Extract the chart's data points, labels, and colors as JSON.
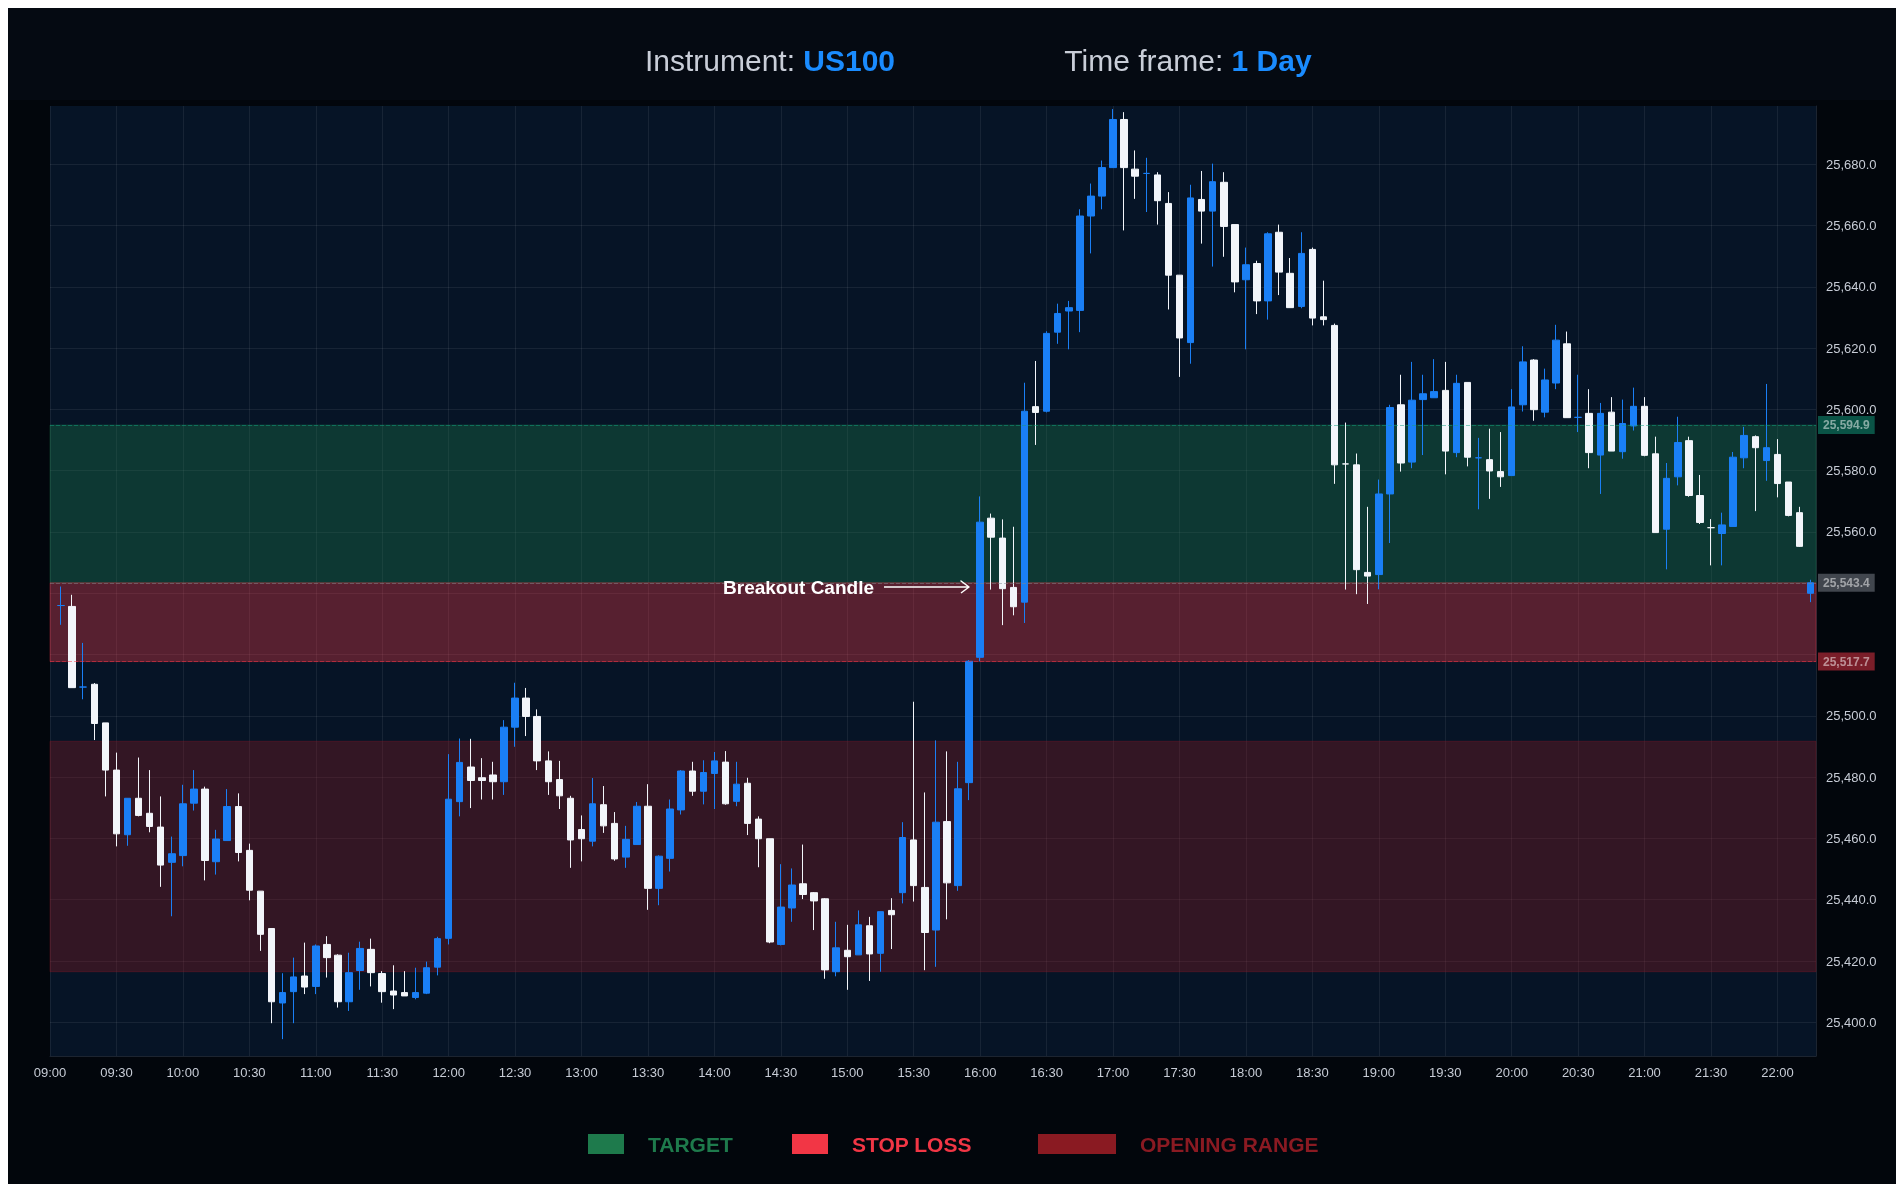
{
  "chart_data": {
    "type": "candlestick",
    "title": "Instrument: US100",
    "subtitle": "Time frame: 1 Day",
    "colors": [
      "#1a7ff5",
      "#f2f5fa",
      "#1a7ff5",
      "#f2f5fa",
      "#f2f5fa",
      "#f2f5fa",
      "#1a7ff5",
      "#f2f5fa",
      "#f2f5fa",
      "#f2f5fa",
      "#1a7ff5",
      "#1a7ff5",
      "#1a7ff5",
      "#f2f5fa",
      "#1a7ff5",
      "#1a7ff5",
      "#f2f5fa",
      "#f2f5fa",
      "#f2f5fa",
      "#f2f5fa",
      "#1a7ff5",
      "#1a7ff5",
      "#f2f5fa",
      "#1a7ff5",
      "#f2f5fa",
      "#f2f5fa",
      "#1a7ff5",
      "#1a7ff5",
      "#f2f5fa",
      "#f2f5fa",
      "#f2f5fa",
      "#f2f5fa",
      "#1a7ff5",
      "#1a7ff5",
      "#1a7ff5",
      "#1a7ff5",
      "#1a7ff5",
      "#f2f5fa",
      "#f2f5fa",
      "#f2f5fa",
      "#1a7ff5",
      "#1a7ff5",
      "#f2f5fa",
      "#f2f5fa",
      "#f2f5fa",
      "#f2f5fa",
      "#f2f5fa",
      "#f2f5fa",
      "#1a7ff5",
      "#f2f5fa",
      "#f2f5fa",
      "#1a7ff5",
      "#1a7ff5",
      "#f2f5fa",
      "#1a7ff5",
      "#1a7ff5",
      "#1a7ff5",
      "#f2f5fa",
      "#1a7ff5",
      "#1a7ff5",
      "#f2f5fa",
      "#1a7ff5",
      "#f2f5fa",
      "#f2f5fa",
      "#f2f5fa",
      "#1a7ff5",
      "#1a7ff5",
      "#f2f5fa",
      "#f2f5fa",
      "#f2f5fa",
      "#1a7ff5",
      "#f2f5fa",
      "#1a7ff5",
      "#f2f5fa",
      "#1a7ff5",
      "#f2f5fa",
      "#1a7ff5",
      "#f2f5fa",
      "#f2f5fa",
      "#1a7ff5",
      "#f2f5fa",
      "#1a7ff5",
      "#1a7ff5",
      "#1a7ff5",
      "#f2f5fa",
      "#f2f5fa",
      "#f2f5fa",
      "#1a7ff5",
      "#f2f5fa",
      "#1a7ff5",
      "#1a7ff5",
      "#1a7ff5",
      "#1a7ff5",
      "#1a7ff5",
      "#1a7ff5",
      "#1a7ff5",
      "#f2f5fa",
      "#f2f5fa",
      "#1a7ff5",
      "#f2f5fa",
      "#f2f5fa",
      "#f2f5fa",
      "#1a7ff5",
      "#f2f5fa",
      "#1a7ff5",
      "#f2f5fa",
      "#f2f5fa",
      "#1a7ff5",
      "#f2f5fa",
      "#1a7ff5",
      "#f2f5fa",
      "#f2f5fa",
      "#1a7ff5",
      "#f2f5fa",
      "#f2f5fa",
      "#f2f5fa",
      "#f2f5fa",
      "#f2f5fa",
      "#f2f5fa",
      "#1a7ff5",
      "#1a7ff5",
      "#f2f5fa",
      "#1a7ff5",
      "#1a7ff5",
      "#1a7ff5",
      "#f2f5fa",
      "#1a7ff5",
      "#f2f5fa",
      "#1a7ff5",
      "#f2f5fa",
      "#f2f5fa",
      "#1a7ff5",
      "#1a7ff5",
      "#f2f5fa",
      "#1a7ff5",
      "#1a7ff5",
      "#f2f5fa",
      "#1a7ff5",
      "#f2f5fa",
      "#1a7ff5",
      "#f2f5fa",
      "#1a7ff5",
      "#1a7ff5",
      "#f2f5fa",
      "#f2f5fa",
      "#1a7ff5",
      "#1a7ff5",
      "#f2f5fa",
      "#f2f5fa",
      "#f2f5fa",
      "#1a7ff5",
      "#1a7ff5",
      "#1a7ff5",
      "#f2f5fa",
      "#1a7ff5",
      "#f2f5fa",
      "#f2f5fa",
      "#f2f5fa",
      "#1a7ff5"
    ],
    "x": [
      9.0833,
      9.1667,
      9.25,
      9.3333,
      9.4167,
      9.5,
      9.5833,
      9.6667,
      9.75,
      9.8333,
      9.9167,
      10,
      10.0833,
      10.1667,
      10.25,
      10.3333,
      10.4167,
      10.5,
      10.5833,
      10.6667,
      10.75,
      10.8333,
      10.9167,
      11,
      11.0833,
      11.1667,
      11.25,
      11.3333,
      11.4167,
      11.5,
      11.5833,
      11.6667,
      11.75,
      11.8333,
      11.9167,
      12,
      12.0833,
      12.1667,
      12.25,
      12.3333,
      12.4167,
      12.5,
      12.5833,
      12.6667,
      12.75,
      12.8333,
      12.9167,
      13,
      13.0833,
      13.1667,
      13.25,
      13.3333,
      13.4167,
      13.5,
      13.5833,
      13.6667,
      13.75,
      13.8333,
      13.9167,
      14,
      14.0833,
      14.1667,
      14.25,
      14.3333,
      14.4167,
      14.5,
      14.5833,
      14.6667,
      14.75,
      14.8333,
      14.9167,
      15,
      15.0833,
      15.1667,
      15.25,
      15.3333,
      15.4167,
      15.5,
      15.5833,
      15.6667,
      15.75,
      15.8333,
      15.9167,
      16,
      16.0833,
      16.1667,
      16.25,
      16.3333,
      16.4167,
      16.5,
      16.5833,
      16.6667,
      16.75,
      16.8333,
      16.9167,
      17,
      17.0833,
      17.1667,
      17.25,
      17.3333,
      17.4167,
      17.5,
      17.5833,
      17.6667,
      17.75,
      17.8333,
      17.9167,
      18,
      18.0833,
      18.1667,
      18.25,
      18.3333,
      18.4167,
      18.5,
      18.5833,
      18.6667,
      18.75,
      18.8333,
      18.9167,
      19,
      19.0833,
      19.1667,
      19.25,
      19.3333,
      19.4167,
      19.5,
      19.5833,
      19.6667,
      19.75,
      19.8333,
      19.9167,
      20,
      20.0833,
      20.1667,
      20.25,
      20.3333,
      20.4167,
      20.5,
      20.5833,
      20.6667,
      20.75,
      20.8333,
      20.9167,
      21,
      21.0833,
      21.1667,
      21.25,
      21.3333,
      21.4167,
      21.5,
      21.5833,
      21.6667,
      21.75,
      21.8333,
      21.9167,
      22,
      22.0833,
      22.1667,
      22.25
    ],
    "ohlc": [
      [
        25536,
        25542.2,
        25529.7,
        25536
      ],
      [
        25535.7,
        25539.5,
        25509.2,
        25509.2
      ],
      [
        25509.4,
        25523.8,
        25505.4,
        25509.4
      ],
      [
        25510.3,
        25510.7,
        25492.1,
        25497.5
      ],
      [
        25497.7,
        25497.7,
        25473.7,
        25482.3
      ],
      [
        25482.3,
        25488,
        25457.4,
        25461.5
      ],
      [
        25461.2,
        25473.1,
        25457.6,
        25473.1
      ],
      [
        25473.1,
        25486.4,
        25467.2,
        25467.5
      ],
      [
        25468.2,
        25482.3,
        25462,
        25463.9
      ],
      [
        25463.7,
        25473.7,
        25444.2,
        25451.3
      ],
      [
        25452.2,
        25460.6,
        25434.6,
        25455
      ],
      [
        25454.4,
        25477.5,
        25450.9,
        25471.3
      ],
      [
        25471.5,
        25482.3,
        25469.1,
        25476.1
      ],
      [
        25476.1,
        25476.9,
        25446.3,
        25452.8
      ],
      [
        25452.4,
        25462.8,
        25448.2,
        25459.8
      ],
      [
        25459.3,
        25476.1,
        25459.3,
        25470.4
      ],
      [
        25470.4,
        25474.7,
        25452.5,
        25455.4
      ],
      [
        25456.1,
        25458.3,
        25439.8,
        25443.1
      ],
      [
        25442.8,
        25442.8,
        25423.3,
        25428.7
      ],
      [
        25430.6,
        25430.6,
        25399.7,
        25406.7
      ],
      [
        25406.3,
        25416,
        25394.5,
        25409.7
      ],
      [
        25410,
        25421.1,
        25399.7,
        25414.8
      ],
      [
        25415.1,
        25426,
        25409.2,
        25411.5
      ],
      [
        25411.7,
        25425.4,
        25409.2,
        25424.9
      ],
      [
        25425.4,
        25428.1,
        25414.6,
        25421.1
      ],
      [
        25421.9,
        25422.2,
        25404.8,
        25406.7
      ],
      [
        25406.7,
        25422.7,
        25403.7,
        25416.2
      ],
      [
        25416.9,
        25426.3,
        25410.6,
        25424.1
      ],
      [
        25423.8,
        25427.3,
        25411.7,
        25416.2
      ],
      [
        25415.9,
        25416.7,
        25406.4,
        25410
      ],
      [
        25410.2,
        25418.6,
        25404.3,
        25408.9
      ],
      [
        25409.7,
        25416.7,
        25408.6,
        25408.6
      ],
      [
        25408.1,
        25417.8,
        25407.5,
        25409.7
      ],
      [
        25409.5,
        25419.8,
        25409.2,
        25417.8
      ],
      [
        25418,
        25427.9,
        25415.3,
        25427.3
      ],
      [
        25427.4,
        25487.5,
        25425.4,
        25472.8
      ],
      [
        25472,
        25492.6,
        25467.2,
        25484.8
      ],
      [
        25483.3,
        25492.5,
        25469.9,
        25478.9
      ],
      [
        25479.8,
        25486.2,
        25472.7,
        25478.9
      ],
      [
        25480.7,
        25485,
        25472.7,
        25478.5
      ],
      [
        25478.5,
        25498.6,
        25474.2,
        25496.3
      ],
      [
        25496.3,
        25510.8,
        25489.9,
        25505.8
      ],
      [
        25505.8,
        25509.1,
        25493.4,
        25499.8
      ],
      [
        25499.8,
        25502.1,
        25482.3,
        25485.3
      ],
      [
        25485.3,
        25488.4,
        25474.2,
        25478.5
      ],
      [
        25479.2,
        25485.3,
        25469.6,
        25473.9
      ],
      [
        25473.1,
        25473.9,
        25450.4,
        25459.5
      ],
      [
        25462.9,
        25467.5,
        25452.5,
        25459.9
      ],
      [
        25459.1,
        25479.7,
        25457.4,
        25471.3
      ],
      [
        25471,
        25477.1,
        25461.8,
        25464.1
      ],
      [
        25464.9,
        25468.6,
        25452.7,
        25453.3
      ],
      [
        25453.9,
        25464.1,
        25450.4,
        25459.7
      ],
      [
        25458,
        25471.9,
        25458,
        25470.5
      ],
      [
        25470.5,
        25477.7,
        25436.7,
        25443.7
      ],
      [
        25443.7,
        25454.5,
        25438.2,
        25454.2
      ],
      [
        25453.5,
        25472.7,
        25449.2,
        25469.6
      ],
      [
        25469.3,
        25482.3,
        25467.8,
        25482
      ],
      [
        25482,
        25485,
        25473.9,
        25475.4
      ],
      [
        25475.4,
        25485.5,
        25471.1,
        25481.5
      ],
      [
        25481.2,
        25488.2,
        25469.6,
        25485.3
      ],
      [
        25484.9,
        25488.5,
        25471,
        25471.3
      ],
      [
        25472.1,
        25485,
        25470.5,
        25477.7
      ],
      [
        25478,
        25479.8,
        25461.1,
        25464.9
      ],
      [
        25466.3,
        25467.2,
        25450.6,
        25459.9
      ],
      [
        25459.9,
        25459.9,
        25425.8,
        25426.2
      ],
      [
        25425.4,
        25451.6,
        25425.1,
        25437.6
      ],
      [
        25437.3,
        25450.2,
        25432.8,
        25444.8
      ],
      [
        25445.2,
        25458,
        25440.2,
        25441.7
      ],
      [
        25442.3,
        25442.5,
        25430.1,
        25439.6
      ],
      [
        25440.3,
        25440.5,
        25414.2,
        25417.1
      ],
      [
        25416.5,
        25432.8,
        25415,
        25424.3
      ],
      [
        25423.5,
        25431.8,
        25410.6,
        25421.4
      ],
      [
        25422,
        25436.5,
        25422,
        25431.8
      ],
      [
        25431.5,
        25434.4,
        25413.5,
        25422.3
      ],
      [
        25422.5,
        25436.1,
        25416.5,
        25436.1
      ],
      [
        25436.5,
        25440.5,
        25423.9,
        25435.1
      ],
      [
        25442.3,
        25465.3,
        25438.8,
        25460.3
      ],
      [
        25459.5,
        25504.6,
        25439.4,
        25444.6
      ],
      [
        25444,
        25475,
        25417,
        25429.3
      ],
      [
        25430.1,
        25492,
        25418.1,
        25465.3
      ],
      [
        25465.5,
        25488.4,
        25433.6,
        25445.5
      ],
      [
        25444.6,
        25485,
        25442.9,
        25476.2
      ],
      [
        25478.2,
        25518.2,
        25472.5,
        25517.8
      ],
      [
        25519.1,
        25571.6,
        25517.8,
        25563.2
      ],
      [
        25564.5,
        25566,
        25541.2,
        25558.3
      ],
      [
        25558,
        25564.1,
        25529.6,
        25541.5
      ],
      [
        25541.9,
        25561.7,
        25532.8,
        25535.6
      ],
      [
        25537.1,
        25608.7,
        25530.3,
        25599.4
      ],
      [
        25600.9,
        25615.8,
        25588.4,
        25599
      ],
      [
        25599.4,
        25625.5,
        25599,
        25624.8
      ],
      [
        25625.2,
        25634.5,
        25621.4,
        25631.3
      ],
      [
        25632.1,
        25635.4,
        25619.6,
        25633.2
      ],
      [
        25632.3,
        25665.3,
        25625.2,
        25663.1
      ],
      [
        25663.1,
        25673.7,
        25650.9,
        25669.6
      ],
      [
        25669.6,
        25681.2,
        25665.3,
        25678.9
      ],
      [
        25678.9,
        25698,
        25678.9,
        25694.6
      ],
      [
        25694.6,
        25697,
        25658.4,
        25678.9
      ],
      [
        25678.4,
        25684.5,
        25668.7,
        25676.1
      ],
      [
        25677,
        25682.1,
        25664.4,
        25677
      ],
      [
        25676.5,
        25677.4,
        25660.3,
        25668.1
      ],
      [
        25667.2,
        25670.9,
        25632.6,
        25643.8
      ],
      [
        25643.8,
        25643.8,
        25610.6,
        25623.3
      ],
      [
        25621.8,
        25673.3,
        25614.9,
        25669
      ],
      [
        25668.5,
        25677.8,
        25654.1,
        25664.7
      ],
      [
        25664.7,
        25680.2,
        25646.6,
        25674.3
      ],
      [
        25674.1,
        25677.4,
        25649.8,
        25659.7
      ],
      [
        25660.3,
        25660.3,
        25638.2,
        25641.6
      ],
      [
        25642.3,
        25652.8,
        25619.6,
        25647.2
      ],
      [
        25647.6,
        25648.5,
        25631.1,
        25635.4
      ],
      [
        25635.4,
        25657.8,
        25629.3,
        25657.3
      ],
      [
        25657.8,
        25660.3,
        25637.3,
        25644.8
      ],
      [
        25644.4,
        25649.4,
        25633.2,
        25633.2
      ],
      [
        25633.6,
        25657.8,
        25633,
        25650.9
      ],
      [
        25652.2,
        25652.8,
        25627.4,
        25629.8
      ],
      [
        25630.2,
        25642,
        25627.4,
        25629.3
      ],
      [
        25627.4,
        25628,
        25575.7,
        25581.9
      ],
      [
        25582.2,
        25595.7,
        25541.2,
        25582.2
      ],
      [
        25581.9,
        25585.6,
        25539.7,
        25547.7
      ],
      [
        25546.8,
        25568.2,
        25536.5,
        25545.6
      ],
      [
        25546.1,
        25577.1,
        25541.3,
        25572.4
      ],
      [
        25572.4,
        25601.5,
        25556.4,
        25600.6
      ],
      [
        25601.5,
        25611.3,
        25579.7,
        25582.5
      ],
      [
        25582.8,
        25615.5,
        25580.8,
        25603
      ],
      [
        25603.2,
        25611.3,
        25585.1,
        25605.1
      ],
      [
        25603.8,
        25616.4,
        25603.8,
        25605.8
      ],
      [
        25606.2,
        25615.5,
        25578.8,
        25586.4
      ],
      [
        25585.9,
        25611.3,
        25584.4,
        25608.5
      ],
      [
        25608.8,
        25608.8,
        25581.4,
        25584.4
      ],
      [
        25584.2,
        25590.7,
        25567.4,
        25584.2
      ],
      [
        25583.6,
        25593.7,
        25570.8,
        25579.9
      ],
      [
        25579.7,
        25592.6,
        25574.7,
        25578
      ],
      [
        25578.4,
        25606.6,
        25578.4,
        25600.8
      ],
      [
        25601.5,
        25620.6,
        25599.3,
        25615.5
      ],
      [
        25616.1,
        25616.4,
        25596.3,
        25599.9
      ],
      [
        25599.1,
        25613.3,
        25597.4,
        25609.6
      ],
      [
        25608.6,
        25627.6,
        25606.6,
        25622.6
      ],
      [
        25621.4,
        25625.4,
        25597.3,
        25597.3
      ],
      [
        25597.4,
        25611.3,
        25592.6,
        25597.4
      ],
      [
        25598.7,
        25606.6,
        25580.8,
        25585.9
      ],
      [
        25585.1,
        25602.1,
        25572.4,
        25598.7
      ],
      [
        25599.1,
        25604,
        25586.4,
        25586.4
      ],
      [
        25586.2,
        25603.2,
        25583.9,
        25595.4
      ],
      [
        25594.6,
        25607.1,
        25593.1,
        25601
      ],
      [
        25601,
        25604,
        25584.7,
        25585
      ],
      [
        25585.5,
        25591.1,
        25559.8,
        25559.8
      ],
      [
        25560.9,
        25582.5,
        25547.8,
        25577.5
      ],
      [
        25578,
        25597.6,
        25575.2,
        25589.2
      ],
      [
        25589.8,
        25591.1,
        25571.5,
        25571.9
      ],
      [
        25571.9,
        25578.6,
        25562.6,
        25563.1
      ],
      [
        25561.4,
        25564.2,
        25549.1,
        25561.4
      ],
      [
        25559.5,
        25566.3,
        25549.1,
        25562.3
      ],
      [
        25561.8,
        25586.1,
        25561.8,
        25584.4
      ],
      [
        25584.2,
        25594.3,
        25580.8,
        25591.5
      ],
      [
        25591.1,
        25591.5,
        25566.8,
        25587.5
      ],
      [
        25583.3,
        25608.3,
        25576.7,
        25587.5
      ],
      [
        25585.3,
        25590.3,
        25571.3,
        25575.8
      ],
      [
        25576.3,
        25576.3,
        25565.1,
        25565.4
      ],
      [
        25566.3,
        25568.2,
        25555.1,
        25555.3
      ],
      [
        25540,
        25544.4,
        25537.1,
        25543.4
      ]
    ],
    "xlim": [
      9,
      22.29
    ],
    "xticks": [
      {
        "value": 9,
        "label": "09:00"
      },
      {
        "value": 9.5,
        "label": "09:30"
      },
      {
        "value": 10,
        "label": "10:00"
      },
      {
        "value": 10.5,
        "label": "10:30"
      },
      {
        "value": 11,
        "label": "11:00"
      },
      {
        "value": 11.5,
        "label": "11:30"
      },
      {
        "value": 12,
        "label": "12:00"
      },
      {
        "value": 12.5,
        "label": "12:30"
      },
      {
        "value": 13,
        "label": "13:00"
      },
      {
        "value": 13.5,
        "label": "13:30"
      },
      {
        "value": 14,
        "label": "14:00"
      },
      {
        "value": 14.5,
        "label": "14:30"
      },
      {
        "value": 15,
        "label": "15:00"
      },
      {
        "value": 15.5,
        "label": "15:30"
      },
      {
        "value": 16,
        "label": "16:00"
      },
      {
        "value": 16.5,
        "label": "16:30"
      },
      {
        "value": 17,
        "label": "17:00"
      },
      {
        "value": 17.5,
        "label": "17:30"
      },
      {
        "value": 18,
        "label": "18:00"
      },
      {
        "value": 18.5,
        "label": "18:30"
      },
      {
        "value": 19,
        "label": "19:00"
      },
      {
        "value": 19.5,
        "label": "19:30"
      },
      {
        "value": 20,
        "label": "20:00"
      },
      {
        "value": 20.5,
        "label": "20:30"
      },
      {
        "value": 21,
        "label": "21:00"
      },
      {
        "value": 21.5,
        "label": "21:30"
      },
      {
        "value": 22,
        "label": "22:00"
      }
    ],
    "ylim": [
      25389,
      25699
    ],
    "yticks": [
      {
        "value": 25400,
        "label": "25,400.0"
      },
      {
        "value": 25420,
        "label": "25,420.0"
      },
      {
        "value": 25440,
        "label": "25,440.0"
      },
      {
        "value": 25460,
        "label": "25,460.0"
      },
      {
        "value": 25480,
        "label": "25,480.0"
      },
      {
        "value": 25500,
        "label": "25,500.0"
      },
      {
        "value": 25520,
        "label": null
      },
      {
        "value": 25540,
        "label": null
      },
      {
        "value": 25560,
        "label": "25,560.0"
      },
      {
        "value": 25580,
        "label": "25,580.0"
      },
      {
        "value": 25600,
        "label": "25,600.0"
      },
      {
        "value": 25620,
        "label": "25,620.0"
      },
      {
        "value": 25640,
        "label": "25,640.0"
      },
      {
        "value": 25660,
        "label": "25,660.0"
      },
      {
        "value": 25680,
        "label": "25,680.0"
      }
    ],
    "grid": true,
    "ref_lines": [
      {
        "axis": "y",
        "value": 25594.9,
        "label": "25,594.9",
        "color": "#12a07f"
      },
      {
        "axis": "y",
        "value": 25543.4,
        "label": "25,543.4",
        "color": "#80858f"
      },
      {
        "axis": "y",
        "value": 25517.7,
        "label": "25,517.7",
        "color": "#f23645"
      }
    ],
    "bands": [
      {
        "axis": "y",
        "from": 25543.4,
        "to": 25594.9,
        "label": "TARGET",
        "color": "#1e7a4c"
      },
      {
        "axis": "y",
        "from": 25517.7,
        "to": 25543.4,
        "label": "STOP LOSS",
        "color": "#f23645"
      },
      {
        "axis": "y",
        "from": 25416.5,
        "to": 25491.7,
        "label": "OPENING RANGE",
        "color": "#8a1a22"
      }
    ],
    "legend": "bottom",
    "annotations": [
      "Breakout Candle"
    ]
  }
}
